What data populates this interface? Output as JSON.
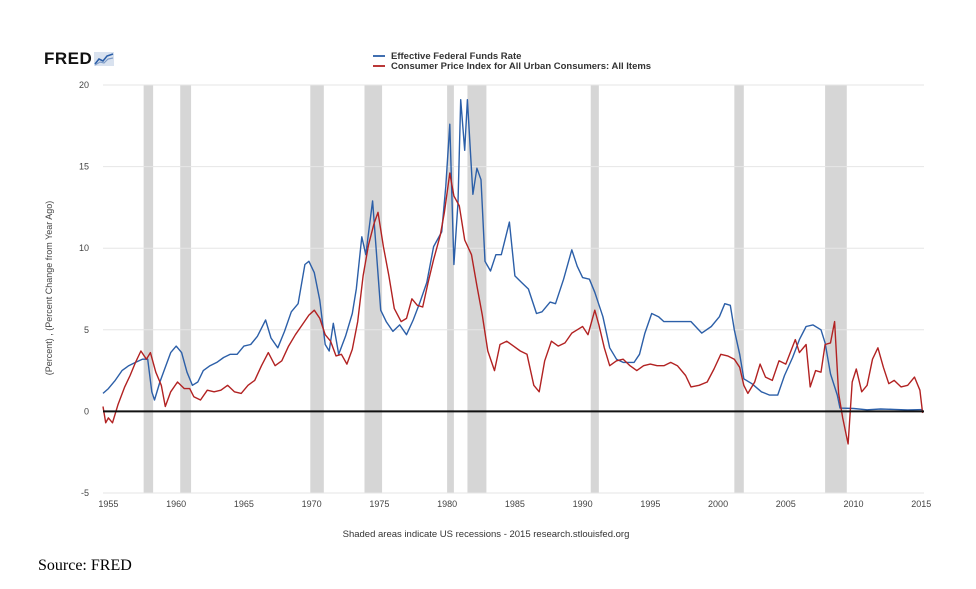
{
  "logo": {
    "text": "FRED"
  },
  "source": "Source: FRED",
  "chart_data": {
    "type": "line",
    "ylabel": "(Percent) , (Percent Change from Year Ago)",
    "note": "Shaded areas indicate US recessions - 2015 research.stlouisfed.org",
    "xlim": [
      1954.6,
      2015.2
    ],
    "ylim": [
      -5,
      20
    ],
    "yticks": [
      -5,
      0,
      5,
      10,
      15,
      20
    ],
    "xticks": [
      1955,
      1960,
      1965,
      1970,
      1975,
      1980,
      1985,
      1990,
      1995,
      2000,
      2005,
      2010,
      2015
    ],
    "grid": true,
    "legend_position": "top-center",
    "recessions": [
      [
        1957.6,
        1958.3
      ],
      [
        1960.3,
        1961.1
      ],
      [
        1969.9,
        1970.9
      ],
      [
        1973.9,
        1975.2
      ],
      [
        1980.0,
        1980.5
      ],
      [
        1981.5,
        1982.9
      ],
      [
        1990.6,
        1991.2
      ],
      [
        2001.2,
        2001.9
      ],
      [
        2007.9,
        2009.5
      ]
    ],
    "series": [
      {
        "name": "Effective Federal Funds Rate",
        "color": "#2c5fa8",
        "points": [
          [
            1954.6,
            1.1
          ],
          [
            1955,
            1.4
          ],
          [
            1955.5,
            1.9
          ],
          [
            1956,
            2.5
          ],
          [
            1956.5,
            2.8
          ],
          [
            1957,
            3.0
          ],
          [
            1957.5,
            3.2
          ],
          [
            1957.9,
            3.2
          ],
          [
            1958.2,
            1.2
          ],
          [
            1958.4,
            0.7
          ],
          [
            1958.8,
            1.8
          ],
          [
            1959.2,
            2.7
          ],
          [
            1959.6,
            3.6
          ],
          [
            1960,
            4.0
          ],
          [
            1960.4,
            3.6
          ],
          [
            1960.8,
            2.4
          ],
          [
            1961.2,
            1.6
          ],
          [
            1961.6,
            1.8
          ],
          [
            1962,
            2.5
          ],
          [
            1962.5,
            2.8
          ],
          [
            1963,
            3.0
          ],
          [
            1963.5,
            3.3
          ],
          [
            1964,
            3.5
          ],
          [
            1964.5,
            3.5
          ],
          [
            1965,
            4.0
          ],
          [
            1965.5,
            4.1
          ],
          [
            1966,
            4.6
          ],
          [
            1966.6,
            5.6
          ],
          [
            1967,
            4.5
          ],
          [
            1967.5,
            3.9
          ],
          [
            1968,
            4.9
          ],
          [
            1968.5,
            6.1
          ],
          [
            1969,
            6.6
          ],
          [
            1969.5,
            9.0
          ],
          [
            1969.8,
            9.2
          ],
          [
            1970.2,
            8.5
          ],
          [
            1970.6,
            6.8
          ],
          [
            1971,
            4.1
          ],
          [
            1971.3,
            3.7
          ],
          [
            1971.6,
            5.4
          ],
          [
            1972,
            3.5
          ],
          [
            1972.5,
            4.6
          ],
          [
            1973,
            6.0
          ],
          [
            1973.3,
            7.5
          ],
          [
            1973.7,
            10.7
          ],
          [
            1974,
            9.6
          ],
          [
            1974.5,
            12.9
          ],
          [
            1974.8,
            9.5
          ],
          [
            1975.1,
            6.2
          ],
          [
            1975.5,
            5.5
          ],
          [
            1976,
            4.9
          ],
          [
            1976.5,
            5.3
          ],
          [
            1977,
            4.7
          ],
          [
            1977.5,
            5.6
          ],
          [
            1978,
            6.7
          ],
          [
            1978.5,
            7.9
          ],
          [
            1979,
            10.1
          ],
          [
            1979.6,
            11.0
          ],
          [
            1979.9,
            13.8
          ],
          [
            1980.2,
            17.6
          ],
          [
            1980.5,
            9.0
          ],
          [
            1980.8,
            12.8
          ],
          [
            1981,
            19.1
          ],
          [
            1981.3,
            16.0
          ],
          [
            1981.5,
            19.1
          ],
          [
            1981.9,
            13.3
          ],
          [
            1982.2,
            14.9
          ],
          [
            1982.5,
            14.2
          ],
          [
            1982.8,
            9.2
          ],
          [
            1983.2,
            8.6
          ],
          [
            1983.6,
            9.6
          ],
          [
            1984,
            9.6
          ],
          [
            1984.6,
            11.6
          ],
          [
            1985,
            8.3
          ],
          [
            1985.5,
            7.9
          ],
          [
            1986,
            7.5
          ],
          [
            1986.6,
            6.0
          ],
          [
            1987,
            6.1
          ],
          [
            1987.6,
            6.7
          ],
          [
            1988,
            6.6
          ],
          [
            1988.6,
            8.1
          ],
          [
            1989.2,
            9.9
          ],
          [
            1989.6,
            8.9
          ],
          [
            1990,
            8.2
          ],
          [
            1990.5,
            8.1
          ],
          [
            1990.9,
            7.3
          ],
          [
            1991.5,
            5.8
          ],
          [
            1992,
            3.9
          ],
          [
            1992.5,
            3.2
          ],
          [
            1993,
            3.0
          ],
          [
            1993.8,
            3.0
          ],
          [
            1994.2,
            3.5
          ],
          [
            1994.6,
            4.8
          ],
          [
            1995.1,
            6.0
          ],
          [
            1995.6,
            5.8
          ],
          [
            1996,
            5.5
          ],
          [
            1997,
            5.5
          ],
          [
            1998,
            5.5
          ],
          [
            1998.8,
            4.8
          ],
          [
            1999.5,
            5.2
          ],
          [
            2000.1,
            5.8
          ],
          [
            2000.5,
            6.6
          ],
          [
            2000.9,
            6.5
          ],
          [
            2001.2,
            5.0
          ],
          [
            2001.6,
            3.5
          ],
          [
            2001.9,
            2.0
          ],
          [
            2002.5,
            1.7
          ],
          [
            2003.2,
            1.2
          ],
          [
            2003.8,
            1.0
          ],
          [
            2004.4,
            1.0
          ],
          [
            2004.9,
            2.2
          ],
          [
            2005.5,
            3.3
          ],
          [
            2006,
            4.4
          ],
          [
            2006.5,
            5.2
          ],
          [
            2007,
            5.3
          ],
          [
            2007.6,
            5.0
          ],
          [
            2007.9,
            4.2
          ],
          [
            2008.3,
            2.3
          ],
          [
            2008.8,
            1.0
          ],
          [
            2009.0,
            0.2
          ],
          [
            2010,
            0.18
          ],
          [
            2011,
            0.1
          ],
          [
            2012,
            0.15
          ],
          [
            2013,
            0.12
          ],
          [
            2014,
            0.09
          ],
          [
            2015.1,
            0.11
          ]
        ]
      },
      {
        "name": "Consumer Price Index for All Urban Consumers: All Items",
        "color": "#b22222",
        "points": [
          [
            1954.6,
            0.3
          ],
          [
            1954.8,
            -0.7
          ],
          [
            1955,
            -0.4
          ],
          [
            1955.3,
            -0.7
          ],
          [
            1955.7,
            0.4
          ],
          [
            1956.2,
            1.5
          ],
          [
            1956.6,
            2.2
          ],
          [
            1957,
            3.0
          ],
          [
            1957.4,
            3.7
          ],
          [
            1957.8,
            3.2
          ],
          [
            1958.1,
            3.6
          ],
          [
            1958.5,
            2.4
          ],
          [
            1958.9,
            1.6
          ],
          [
            1959.2,
            0.3
          ],
          [
            1959.6,
            1.2
          ],
          [
            1960.1,
            1.8
          ],
          [
            1960.6,
            1.4
          ],
          [
            1961,
            1.4
          ],
          [
            1961.3,
            0.9
          ],
          [
            1961.8,
            0.7
          ],
          [
            1962.3,
            1.3
          ],
          [
            1962.8,
            1.2
          ],
          [
            1963.3,
            1.3
          ],
          [
            1963.8,
            1.6
          ],
          [
            1964.3,
            1.2
          ],
          [
            1964.8,
            1.1
          ],
          [
            1965.3,
            1.6
          ],
          [
            1965.8,
            1.9
          ],
          [
            1966.3,
            2.8
          ],
          [
            1966.8,
            3.6
          ],
          [
            1967.3,
            2.8
          ],
          [
            1967.8,
            3.1
          ],
          [
            1968.3,
            4.0
          ],
          [
            1968.8,
            4.7
          ],
          [
            1969.3,
            5.3
          ],
          [
            1969.8,
            5.9
          ],
          [
            1970.2,
            6.2
          ],
          [
            1970.6,
            5.7
          ],
          [
            1971,
            4.7
          ],
          [
            1971.4,
            4.3
          ],
          [
            1971.8,
            3.4
          ],
          [
            1972.2,
            3.5
          ],
          [
            1972.6,
            2.9
          ],
          [
            1973,
            3.8
          ],
          [
            1973.4,
            5.5
          ],
          [
            1973.8,
            8.3
          ],
          [
            1974.2,
            10.2
          ],
          [
            1974.6,
            11.5
          ],
          [
            1974.9,
            12.2
          ],
          [
            1975.3,
            10.1
          ],
          [
            1975.7,
            8.3
          ],
          [
            1976.1,
            6.3
          ],
          [
            1976.6,
            5.5
          ],
          [
            1977,
            5.7
          ],
          [
            1977.4,
            6.9
          ],
          [
            1977.8,
            6.5
          ],
          [
            1978.2,
            6.4
          ],
          [
            1978.6,
            7.9
          ],
          [
            1979,
            9.3
          ],
          [
            1979.5,
            10.8
          ],
          [
            1979.8,
            12.2
          ],
          [
            1980.2,
            14.6
          ],
          [
            1980.5,
            13.2
          ],
          [
            1980.9,
            12.6
          ],
          [
            1981.3,
            10.5
          ],
          [
            1981.8,
            9.6
          ],
          [
            1982.2,
            7.7
          ],
          [
            1982.6,
            5.9
          ],
          [
            1983,
            3.7
          ],
          [
            1983.5,
            2.5
          ],
          [
            1983.9,
            4.1
          ],
          [
            1984.4,
            4.3
          ],
          [
            1984.9,
            4.0
          ],
          [
            1985.4,
            3.7
          ],
          [
            1985.9,
            3.5
          ],
          [
            1986.4,
            1.6
          ],
          [
            1986.8,
            1.2
          ],
          [
            1987.2,
            3.1
          ],
          [
            1987.7,
            4.3
          ],
          [
            1988.2,
            4.0
          ],
          [
            1988.7,
            4.2
          ],
          [
            1989.2,
            4.8
          ],
          [
            1989.6,
            5.0
          ],
          [
            1990,
            5.2
          ],
          [
            1990.4,
            4.7
          ],
          [
            1990.9,
            6.2
          ],
          [
            1991.2,
            5.3
          ],
          [
            1991.6,
            3.9
          ],
          [
            1992,
            2.8
          ],
          [
            1992.5,
            3.1
          ],
          [
            1993,
            3.2
          ],
          [
            1993.5,
            2.8
          ],
          [
            1994,
            2.5
          ],
          [
            1994.5,
            2.8
          ],
          [
            1995,
            2.9
          ],
          [
            1995.5,
            2.8
          ],
          [
            1996,
            2.8
          ],
          [
            1996.5,
            3.0
          ],
          [
            1997,
            2.8
          ],
          [
            1997.6,
            2.2
          ],
          [
            1998,
            1.5
          ],
          [
            1998.6,
            1.6
          ],
          [
            1999.2,
            1.8
          ],
          [
            1999.7,
            2.6
          ],
          [
            2000.2,
            3.5
          ],
          [
            2000.7,
            3.4
          ],
          [
            2001.2,
            3.2
          ],
          [
            2001.6,
            2.7
          ],
          [
            2001.9,
            1.6
          ],
          [
            2002.2,
            1.1
          ],
          [
            2002.7,
            1.8
          ],
          [
            2003.1,
            2.9
          ],
          [
            2003.5,
            2.1
          ],
          [
            2004,
            1.9
          ],
          [
            2004.5,
            3.1
          ],
          [
            2005,
            2.9
          ],
          [
            2005.7,
            4.4
          ],
          [
            2006,
            3.6
          ],
          [
            2006.5,
            4.1
          ],
          [
            2006.8,
            1.5
          ],
          [
            2007.2,
            2.5
          ],
          [
            2007.6,
            2.4
          ],
          [
            2007.9,
            4.1
          ],
          [
            2008.3,
            4.2
          ],
          [
            2008.6,
            5.5
          ],
          [
            2008.9,
            1.1
          ],
          [
            2009.2,
            -0.4
          ],
          [
            2009.6,
            -2.0
          ],
          [
            2009.9,
            1.8
          ],
          [
            2010.2,
            2.6
          ],
          [
            2010.6,
            1.2
          ],
          [
            2011,
            1.6
          ],
          [
            2011.4,
            3.2
          ],
          [
            2011.8,
            3.9
          ],
          [
            2012.2,
            2.7
          ],
          [
            2012.6,
            1.7
          ],
          [
            2013,
            1.9
          ],
          [
            2013.5,
            1.5
          ],
          [
            2014,
            1.6
          ],
          [
            2014.5,
            2.1
          ],
          [
            2014.9,
            1.3
          ],
          [
            2015.1,
            -0.1
          ]
        ]
      }
    ]
  }
}
